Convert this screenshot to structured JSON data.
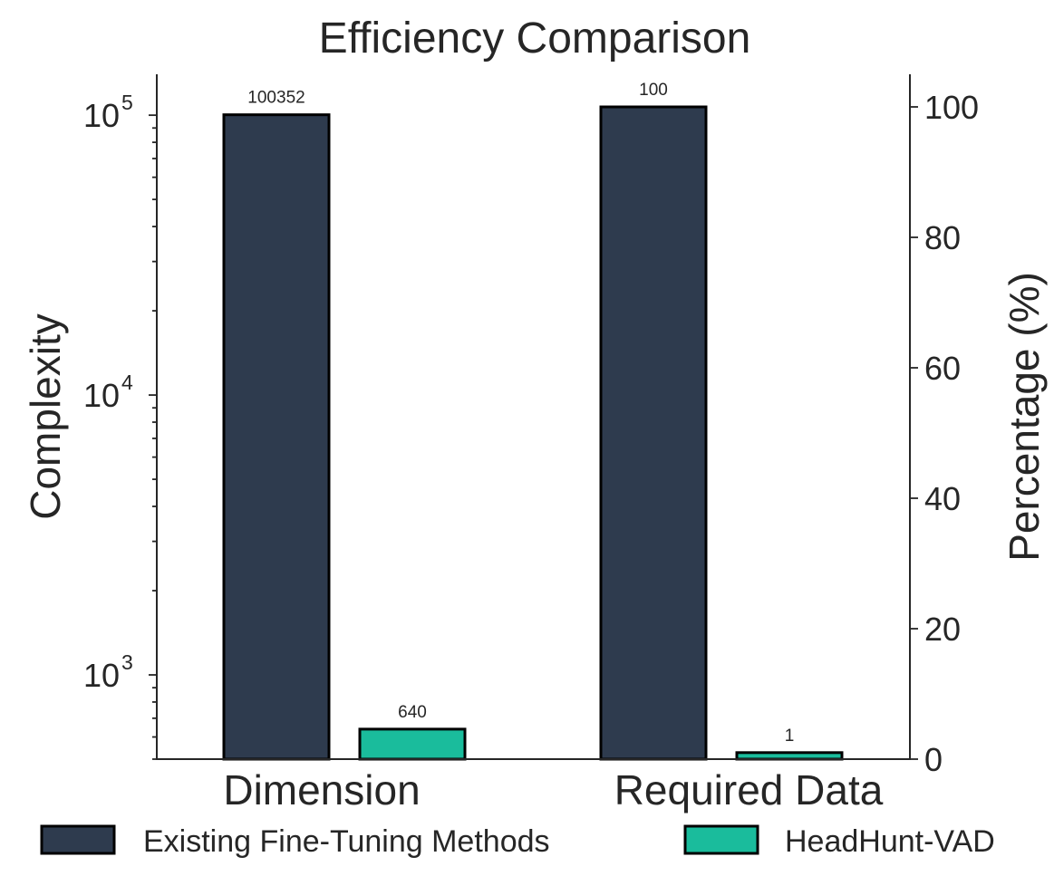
{
  "chart_data": {
    "type": "bar",
    "title": "Efficiency Comparison",
    "categories": [
      "Dimension",
      "Required Data"
    ],
    "series": [
      {
        "name": "Existing Fine-Tuning Methods",
        "values": [
          100352,
          100
        ],
        "color": "#2e3b4e"
      },
      {
        "name": "HeadHunt-VAD",
        "values": [
          640,
          1
        ],
        "color": "#1abc9c"
      }
    ],
    "data_labels": [
      [
        "100352",
        "640"
      ],
      [
        "100",
        "1"
      ]
    ],
    "axes": {
      "left": {
        "label": "Complexity",
        "scale": "log",
        "ylim": [
          500,
          140000
        ],
        "ticks": [
          {
            "value": 1000,
            "base": "10",
            "exp": "3"
          },
          {
            "value": 10000,
            "base": "10",
            "exp": "4"
          },
          {
            "value": 100000,
            "base": "10",
            "exp": "5"
          }
        ],
        "applies_to_category": "Dimension"
      },
      "right": {
        "label": "Percentage (%)",
        "scale": "linear",
        "ylim": [
          0,
          105
        ],
        "ticks": [
          "0",
          "20",
          "40",
          "60",
          "80",
          "100"
        ],
        "applies_to_category": "Required Data"
      }
    },
    "legend": {
      "placement": "bottom",
      "entries": [
        "Existing Fine-Tuning Methods",
        "HeadHunt-VAD"
      ]
    },
    "grid": false,
    "edge_color": "#000000"
  }
}
